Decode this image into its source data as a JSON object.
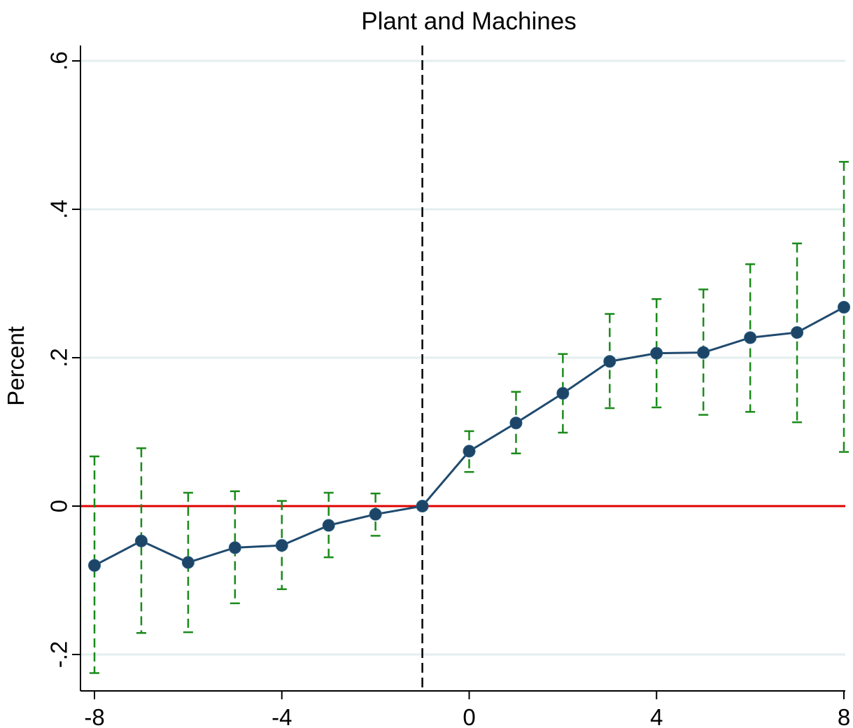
{
  "chart_data": {
    "type": "scatter",
    "title": "Plant and Machines",
    "xlabel": "",
    "ylabel": "Percent",
    "xlim": [
      -8,
      8
    ],
    "ylim": [
      -0.2,
      0.6
    ],
    "x_ticks": [
      -8,
      -4,
      0,
      4,
      8
    ],
    "x_tick_labels": [
      "-8",
      "-4",
      "0",
      "4",
      "8"
    ],
    "y_ticks": [
      -0.2,
      0,
      0.2,
      0.4,
      0.6
    ],
    "y_tick_labels": [
      "-.2",
      "0",
      ".2",
      ".4",
      ".6"
    ],
    "grid": "horizontal",
    "reference_lines": {
      "horizontal_y": 0,
      "vertical_x": -1
    },
    "series": [
      {
        "x": [
          -8,
          -7,
          -6,
          -5,
          -4,
          -3,
          -2,
          -1,
          0,
          1,
          2,
          3,
          4,
          5,
          6,
          7,
          8
        ],
        "y": [
          -0.08,
          -0.047,
          -0.076,
          -0.056,
          -0.053,
          -0.026,
          -0.011,
          0.0,
          0.074,
          0.112,
          0.152,
          0.195,
          0.206,
          0.207,
          0.227,
          0.234,
          0.268
        ],
        "ci_low": [
          -0.225,
          -0.171,
          -0.17,
          -0.131,
          -0.112,
          -0.069,
          -0.04,
          0.0,
          0.046,
          0.071,
          0.099,
          0.132,
          0.133,
          0.123,
          0.127,
          0.113,
          0.073
        ],
        "ci_high": [
          0.067,
          0.078,
          0.018,
          0.02,
          0.007,
          0.018,
          0.017,
          0.0,
          0.101,
          0.154,
          0.205,
          0.259,
          0.279,
          0.292,
          0.326,
          0.354,
          0.464
        ]
      }
    ],
    "colors": {
      "line": "#1f4a6e",
      "marker": "#1c4567",
      "ci": "#1a8a1a",
      "zero_line": "#e00000",
      "vline": "#000000",
      "grid": "#e4eeee",
      "axis": "#000000"
    }
  }
}
